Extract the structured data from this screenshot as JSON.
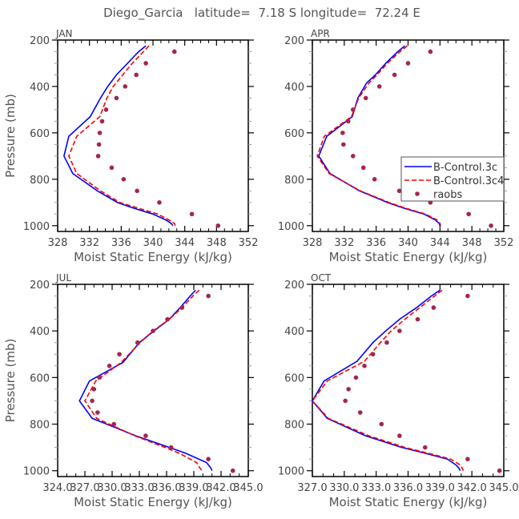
{
  "chart_data": {
    "title": "Diego_Garcia   latitude=  7.18 S longitude=  72.24 E",
    "type": "line",
    "legend": {
      "placement": "right-middle (APR panel)",
      "entries": [
        {
          "name": "B-Control.3c",
          "color": "#0000ff",
          "style": "solid"
        },
        {
          "name": "B-Control.3c4",
          "color": "#ff0000",
          "style": "dashed"
        },
        {
          "name": "raobs",
          "color": "#a3264f",
          "style": "marker"
        }
      ]
    },
    "panels": [
      {
        "label": "JAN",
        "xlabel": "Moist Static Energy (kJ/kg)",
        "ylabel": "Pressure (mb)",
        "xlim": [
          328,
          352
        ],
        "xticks": [
          "328",
          "332",
          "336",
          "340",
          "344",
          "348",
          "352"
        ],
        "ylim": [
          1025,
          200
        ],
        "yticks": [
          "200",
          "400",
          "600",
          "800",
          "1000"
        ],
        "pressure": [
          225,
          250,
          300,
          350,
          400,
          450,
          530,
          615,
          700,
          775,
          850,
          900,
          925,
          950,
          975,
          990,
          1000
        ],
        "series": [
          {
            "name": "B-Control.3c",
            "values": [
              339.1,
              338.2,
              336.8,
              335.4,
              334.3,
              333.4,
              332.1,
              329.4,
              328.8,
              329.9,
              333.0,
              335.5,
              337.6,
              340.0,
              341.6,
              342.3,
              342.5
            ]
          },
          {
            "name": "B-Control.3c4",
            "values": [
              339.5,
              338.8,
              337.4,
              336.2,
              335.0,
              334.2,
              333.3,
              330.4,
              329.4,
              330.4,
              333.4,
              335.8,
              338.2,
              340.6,
              342.0,
              342.7,
              342.8
            ]
          },
          {
            "name": "raobs",
            "pressure": [
              250,
              300,
              350,
              400,
              450,
              500,
              550,
              600,
              650,
              700,
              750,
              800,
              850,
              900,
              950,
              1000
            ],
            "values": [
              342.7,
              339.1,
              337.9,
              336.5,
              335.4,
              334.1,
              333.6,
              333.3,
              333.2,
              333.1,
              334.8,
              336.3,
              338.0,
              340.8,
              344.9,
              348.2
            ]
          }
        ]
      },
      {
        "label": "APR",
        "xlabel": "Moist Static Energy (kJ/kg)",
        "ylabel": "",
        "xlim": [
          328,
          352
        ],
        "xticks": [
          "328",
          "332",
          "336",
          "340",
          "344",
          "348",
          "352"
        ],
        "ylim": [
          1025,
          200
        ],
        "yticks": [
          "200",
          "400",
          "600",
          "800",
          "1000"
        ],
        "pressure": [
          225,
          250,
          300,
          350,
          385,
          450,
          530,
          615,
          700,
          775,
          850,
          900,
          925,
          950,
          975,
          990,
          1000
        ],
        "series": [
          {
            "name": "B-Control.3c",
            "values": [
              339.6,
              338.7,
              337.2,
              335.9,
              334.8,
              333.7,
              333.0,
              329.8,
              328.8,
              330.2,
              333.9,
              337.4,
              339.5,
              342.0,
              343.4,
              343.9,
              344.0
            ]
          },
          {
            "name": "B-Control.3c4",
            "values": [
              339.9,
              339.0,
              337.4,
              336.1,
              335.1,
              333.8,
              332.9,
              329.5,
              328.6,
              330.1,
              334.0,
              337.6,
              339.7,
              342.2,
              343.6,
              344.0,
              344.1
            ]
          },
          {
            "name": "raobs",
            "pressure": [
              250,
              300,
              350,
              400,
              450,
              500,
              550,
              600,
              650,
              700,
              750,
              800,
              850,
              900,
              950,
              1000
            ],
            "values": [
              342.8,
              340.0,
              338.3,
              336.4,
              334.7,
              333.1,
              332.5,
              331.8,
              331.9,
              333.1,
              334.4,
              335.8,
              338.9,
              342.8,
              347.6,
              350.4
            ]
          }
        ]
      },
      {
        "label": "JUL",
        "xlabel": "Moist Static Energy (kJ/kg)",
        "ylabel": "Pressure (mb)",
        "xlim": [
          324,
          345
        ],
        "xticks": [
          "324.0",
          "327.0",
          "330.0",
          "333.0",
          "336.0",
          "339.0",
          "342.0",
          "345.0"
        ],
        "ylim": [
          1025,
          200
        ],
        "yticks": [
          "200",
          "400",
          "600",
          "800",
          "1000"
        ],
        "pressure": [
          225,
          250,
          300,
          350,
          400,
          450,
          535,
          615,
          700,
          775,
          850,
          900,
          925,
          965,
          990,
          1000
        ],
        "series": [
          {
            "name": "B-Control.3c",
            "values": [
              339.2,
              338.6,
              337.5,
              336.3,
              334.6,
              333.0,
              331.2,
              327.5,
              326.4,
              327.8,
              332.6,
              336.3,
              338.1,
              340.4,
              340.9,
              341.0
            ]
          },
          {
            "name": "B-Control.3c4",
            "values": [
              339.6,
              338.9,
              337.7,
              336.3,
              334.5,
              333.1,
              331.0,
              328.2,
              327.0,
              328.3,
              332.5,
              335.8,
              337.4,
              339.3,
              339.7,
              339.9
            ]
          },
          {
            "name": "raobs",
            "pressure": [
              250,
              300,
              350,
              400,
              450,
              500,
              550,
              600,
              650,
              700,
              750,
              800,
              850,
              900,
              950,
              1000
            ],
            "values": [
              340.6,
              337.7,
              336.1,
              334.5,
              332.8,
              330.8,
              329.7,
              328.6,
              328.0,
              327.8,
              328.4,
              330.2,
              333.7,
              336.5,
              340.6,
              343.3
            ]
          }
        ]
      },
      {
        "label": "OCT",
        "xlabel": "Moist Static Energy (kJ/kg)",
        "ylabel": "",
        "xlim": [
          327,
          345
        ],
        "xticks": [
          "327.0",
          "330.0",
          "333.0",
          "336.0",
          "339.0",
          "342.0",
          "345.0"
        ],
        "ylim": [
          1025,
          200
        ],
        "yticks": [
          "200",
          "400",
          "600",
          "800",
          "1000"
        ],
        "pressure": [
          225,
          250,
          300,
          350,
          400,
          450,
          530,
          615,
          700,
          775,
          850,
          900,
          925,
          950,
          975,
          990,
          1000
        ],
        "series": [
          {
            "name": "B-Control.3c",
            "values": [
              339.0,
              338.2,
              336.8,
              335.2,
              333.9,
              332.7,
              331.2,
              328.1,
              327.0,
              328.4,
              332.0,
              335.4,
              337.6,
              339.7,
              340.5,
              340.8,
              340.9
            ]
          },
          {
            "name": "B-Control.3c4",
            "values": [
              339.2,
              338.5,
              337.1,
              335.7,
              334.4,
              333.4,
              331.9,
              328.4,
              327.0,
              328.5,
              332.3,
              335.7,
              337.9,
              340.0,
              340.9,
              341.1,
              341.2
            ]
          },
          {
            "name": "raobs",
            "pressure": [
              250,
              300,
              350,
              400,
              450,
              500,
              550,
              600,
              650,
              700,
              750,
              800,
              850,
              900,
              950,
              1000
            ],
            "values": [
              341.6,
              338.4,
              336.9,
              335.2,
              334.0,
              332.7,
              331.9,
              331.1,
              330.4,
              330.1,
              331.5,
              333.5,
              335.2,
              337.6,
              341.6,
              344.6
            ]
          }
        ]
      }
    ]
  }
}
